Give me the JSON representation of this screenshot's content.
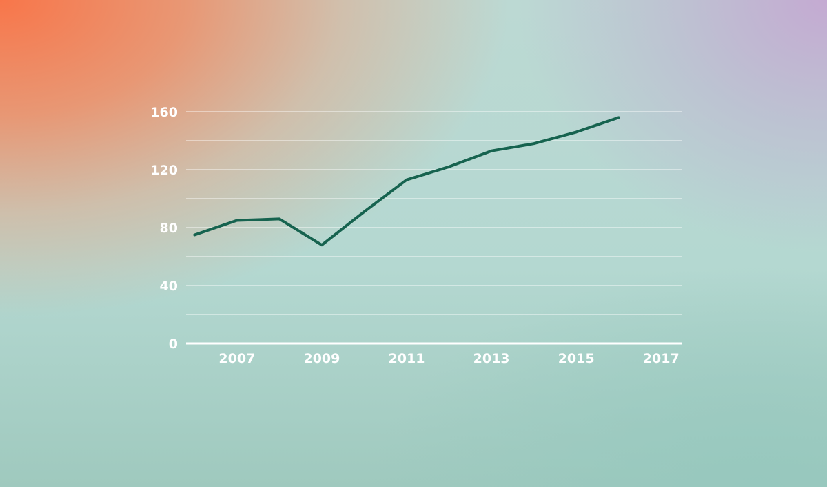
{
  "colors": {
    "line": "#16634f",
    "grid": "#ffffff",
    "text": "#ffffff"
  },
  "chart_data": {
    "type": "line",
    "title": "",
    "xlabel": "",
    "ylabel": "",
    "xlim": [
      2005.8,
      2017.5
    ],
    "ylim": [
      0,
      160
    ],
    "grid": true,
    "legend": "none",
    "x_ticks": [
      2007,
      2009,
      2011,
      2013,
      2015,
      2017
    ],
    "x_tick_labels": [
      "2007",
      "2009",
      "2011",
      "2013",
      "2015",
      "2017"
    ],
    "y_ticks": [
      0,
      40,
      80,
      120,
      160
    ],
    "y_tick_labels": [
      "0",
      "40",
      "80",
      "120",
      "160"
    ],
    "y_gridlines": [
      20,
      40,
      60,
      80,
      100,
      120,
      140,
      160
    ],
    "series": [
      {
        "x": [
          2006,
          2007,
          2008,
          2009,
          2010,
          2011,
          2012,
          2013,
          2014,
          2015,
          2016
        ],
        "values": [
          75,
          85,
          86,
          68,
          91,
          113,
          122,
          133,
          138,
          146,
          156
        ]
      }
    ]
  }
}
